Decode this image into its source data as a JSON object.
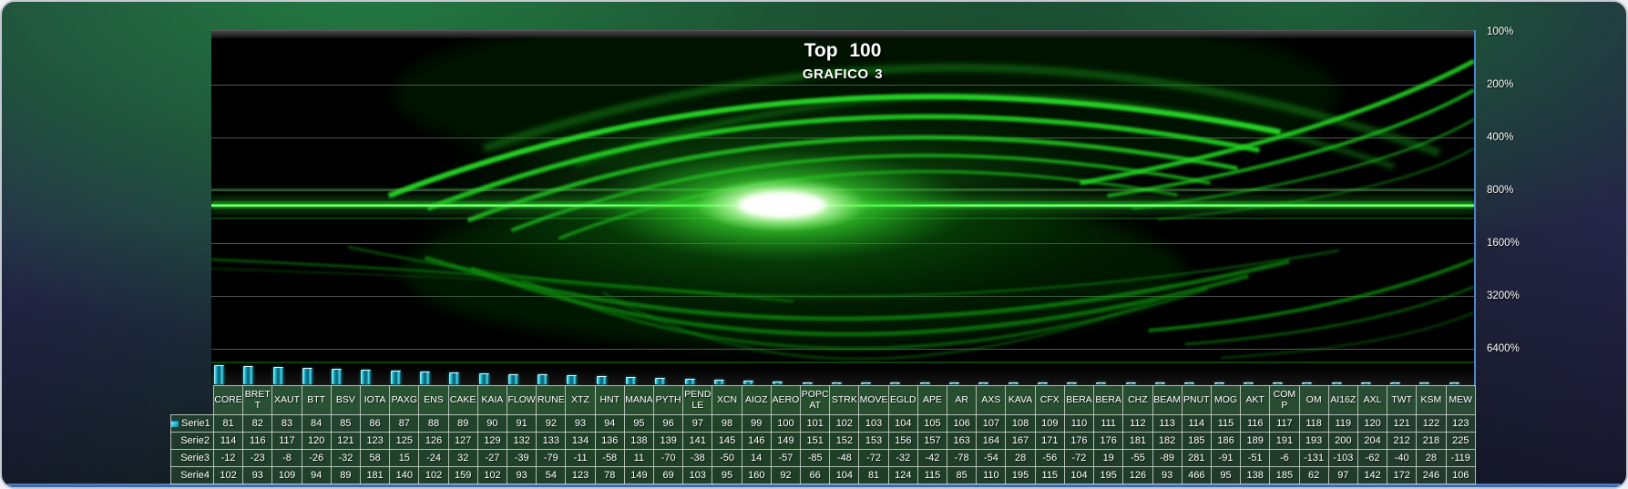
{
  "chart": {
    "title": "Top 100",
    "subtitle": "GRAFICO 3"
  },
  "colors": {
    "bar_cyan": "#2fd3e6",
    "flame_green": "#35e435",
    "plot_background": "#000000",
    "axis_text": "#ffffff",
    "selection_border_blue": "#4d86c8",
    "table_cell_green": "#3a723e"
  },
  "chart_data": {
    "type": "bar",
    "title": "Top 100",
    "subtitle": "GRAFICO 3",
    "categories": [
      "CORE",
      "BRETT",
      "XAUT",
      "BTT",
      "BSV",
      "IOTA",
      "PAXG",
      "ENS",
      "CAKE",
      "KAIA",
      "FLOW",
      "RUNE",
      "XTZ",
      "HNT",
      "MANA",
      "PYTH",
      "PENDLE",
      "XCN",
      "AIOZ",
      "AERO",
      "POPCAT",
      "STRK",
      "MOVE",
      "EGLD",
      "APE",
      "AR",
      "AXS",
      "KAVA",
      "CFX",
      "BERA",
      "BERA",
      "CHZ",
      "BEAM",
      "PNUT",
      "MOG",
      "AKT",
      "COMP",
      "OM",
      "AI16Z",
      "AXL",
      "TWT",
      "KSM",
      "MEW"
    ],
    "series": [
      {
        "name": "Serie1",
        "values": [
          81,
          82,
          83,
          84,
          85,
          86,
          87,
          88,
          89,
          90,
          91,
          92,
          93,
          94,
          95,
          96,
          97,
          98,
          99,
          100,
          101,
          102,
          103,
          104,
          105,
          106,
          107,
          108,
          109,
          110,
          111,
          112,
          113,
          114,
          115,
          116,
          117,
          118,
          119,
          120,
          121,
          122,
          123
        ]
      },
      {
        "name": "Serie2",
        "values": [
          114,
          116,
          117,
          120,
          121,
          123,
          125,
          126,
          127,
          129,
          132,
          133,
          134,
          136,
          138,
          139,
          141,
          145,
          146,
          149,
          151,
          152,
          153,
          156,
          157,
          163,
          164,
          167,
          171,
          176,
          176,
          181,
          182,
          185,
          186,
          189,
          191,
          193,
          200,
          204,
          212,
          218,
          225
        ]
      },
      {
        "name": "Serie3",
        "values": [
          -12,
          -23,
          -8,
          -26,
          -32,
          58,
          15,
          -24,
          32,
          -27,
          -39,
          -79,
          -11,
          -58,
          11,
          -70,
          -38,
          -50,
          14,
          -57,
          -85,
          -48,
          -72,
          -32,
          -42,
          -78,
          -54,
          28,
          -56,
          -72,
          19,
          -55,
          -89,
          281,
          -91,
          -51,
          -6,
          -131,
          -103,
          -62,
          -40,
          28,
          -119
        ]
      },
      {
        "name": "Serie4",
        "values": [
          102,
          93,
          109,
          94,
          89,
          181,
          140,
          102,
          159,
          102,
          93,
          54,
          123,
          78,
          149,
          69,
          103,
          95,
          160,
          92,
          66,
          104,
          81,
          124,
          115,
          85,
          110,
          195,
          115,
          104,
          195,
          126,
          93,
          466,
          95,
          138,
          185,
          62,
          97,
          142,
          172,
          246,
          106
        ]
      }
    ],
    "value_axis": {
      "labels": [
        "100%",
        "200%",
        "400%",
        "800%",
        "1600%",
        "3200%",
        "6400%"
      ],
      "scale": "log",
      "position": "right",
      "direction": "increasing-downward"
    },
    "grid": true,
    "legend_position": "table-rows"
  }
}
